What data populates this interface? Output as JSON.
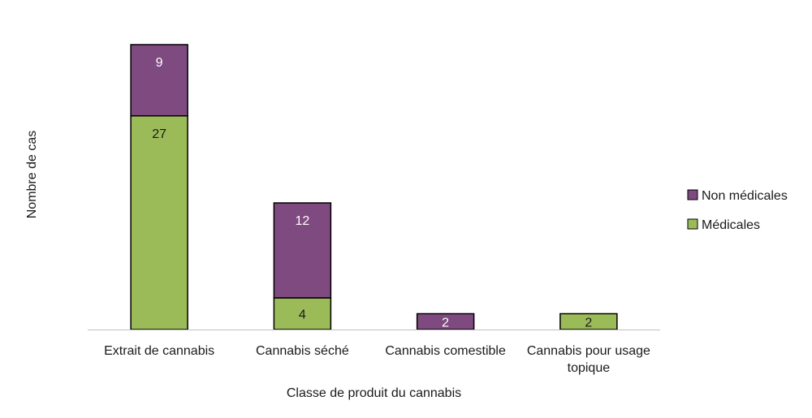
{
  "chart_data": {
    "type": "bar",
    "stacked": true,
    "categories": [
      [
        "Extrait de cannabis"
      ],
      [
        "Cannabis séché"
      ],
      [
        "Cannabis comestible"
      ],
      [
        "Cannabis pour usage",
        "topique"
      ]
    ],
    "series": [
      {
        "name": "Médicales",
        "values": [
          27,
          4,
          0,
          2
        ],
        "color": "#9bbb59",
        "label_color": "#1a1a1a"
      },
      {
        "name": "Non médicales",
        "values": [
          9,
          12,
          2,
          0
        ],
        "color": "#7e4a7f",
        "label_color": "#ffffff"
      }
    ],
    "xlabel": "Classe de produit du cannabis",
    "ylabel": "Nombre de cas",
    "ylim": [
      0,
      36
    ],
    "grid": false,
    "legend_position": "right",
    "legend_order": [
      "Non médicales",
      "Médicales"
    ]
  }
}
